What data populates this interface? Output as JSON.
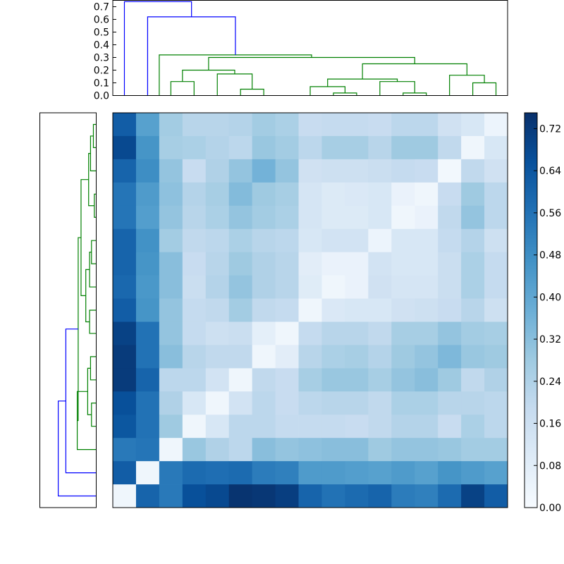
{
  "chart_data": {
    "type": "heatmap",
    "title": "",
    "xlabel": "",
    "ylabel": "",
    "colormap": "Blues",
    "colors": {
      "low": "#f7fbff",
      "high": "#08306b",
      "cluster_link": "#008000",
      "top_link": "#0000ff"
    },
    "colorbar": {
      "range": [
        0.0,
        0.75
      ],
      "tick_values": [
        0.0,
        0.08,
        0.16,
        0.24,
        0.32,
        0.4,
        0.48,
        0.56,
        0.64,
        0.72
      ],
      "tick_labels": [
        "0.00",
        "0.08",
        "0.16",
        "0.24",
        "0.32",
        "0.40",
        "0.48",
        "0.56",
        "0.64",
        "0.72"
      ]
    },
    "matrix": [
      [
        0.62,
        0.42,
        0.27,
        0.22,
        0.22,
        0.23,
        0.27,
        0.25,
        0.18,
        0.19,
        0.19,
        0.18,
        0.21,
        0.21,
        0.15,
        0.12,
        0.04
      ],
      [
        0.68,
        0.46,
        0.26,
        0.25,
        0.23,
        0.21,
        0.29,
        0.27,
        0.21,
        0.26,
        0.26,
        0.22,
        0.28,
        0.28,
        0.2,
        0.03,
        0.12
      ],
      [
        0.6,
        0.48,
        0.3,
        0.18,
        0.24,
        0.3,
        0.36,
        0.3,
        0.15,
        0.16,
        0.16,
        0.17,
        0.19,
        0.18,
        0.02,
        0.2,
        0.15
      ],
      [
        0.55,
        0.44,
        0.31,
        0.23,
        0.26,
        0.33,
        0.28,
        0.26,
        0.13,
        0.1,
        0.11,
        0.12,
        0.05,
        0.03,
        0.18,
        0.28,
        0.21
      ],
      [
        0.55,
        0.43,
        0.3,
        0.22,
        0.25,
        0.3,
        0.27,
        0.25,
        0.13,
        0.1,
        0.1,
        0.12,
        0.03,
        0.05,
        0.2,
        0.3,
        0.21
      ],
      [
        0.6,
        0.47,
        0.27,
        0.2,
        0.21,
        0.25,
        0.22,
        0.21,
        0.12,
        0.14,
        0.14,
        0.04,
        0.12,
        0.12,
        0.19,
        0.23,
        0.16
      ],
      [
        0.6,
        0.46,
        0.32,
        0.18,
        0.22,
        0.28,
        0.24,
        0.22,
        0.08,
        0.05,
        0.05,
        0.14,
        0.12,
        0.12,
        0.17,
        0.25,
        0.19
      ],
      [
        0.59,
        0.45,
        0.32,
        0.17,
        0.23,
        0.3,
        0.24,
        0.22,
        0.09,
        0.03,
        0.05,
        0.15,
        0.13,
        0.13,
        0.17,
        0.25,
        0.19
      ],
      [
        0.62,
        0.46,
        0.3,
        0.19,
        0.2,
        0.27,
        0.2,
        0.19,
        0.03,
        0.11,
        0.12,
        0.12,
        0.15,
        0.16,
        0.18,
        0.22,
        0.16
      ],
      [
        0.7,
        0.56,
        0.3,
        0.19,
        0.16,
        0.17,
        0.07,
        0.03,
        0.19,
        0.22,
        0.22,
        0.2,
        0.26,
        0.26,
        0.3,
        0.27,
        0.26
      ],
      [
        0.72,
        0.56,
        0.32,
        0.22,
        0.2,
        0.2,
        0.03,
        0.08,
        0.22,
        0.25,
        0.26,
        0.23,
        0.28,
        0.3,
        0.34,
        0.29,
        0.28
      ],
      [
        0.72,
        0.6,
        0.21,
        0.21,
        0.14,
        0.03,
        0.2,
        0.18,
        0.26,
        0.29,
        0.29,
        0.26,
        0.3,
        0.32,
        0.28,
        0.2,
        0.24
      ],
      [
        0.66,
        0.56,
        0.24,
        0.12,
        0.03,
        0.14,
        0.21,
        0.18,
        0.21,
        0.22,
        0.22,
        0.2,
        0.25,
        0.25,
        0.22,
        0.22,
        0.21
      ],
      [
        0.64,
        0.56,
        0.28,
        0.03,
        0.12,
        0.21,
        0.21,
        0.19,
        0.19,
        0.19,
        0.18,
        0.2,
        0.23,
        0.23,
        0.18,
        0.25,
        0.21
      ],
      [
        0.54,
        0.55,
        0.03,
        0.29,
        0.24,
        0.21,
        0.32,
        0.3,
        0.31,
        0.32,
        0.32,
        0.28,
        0.3,
        0.3,
        0.29,
        0.27,
        0.27
      ],
      [
        0.62,
        0.03,
        0.54,
        0.58,
        0.57,
        0.58,
        0.53,
        0.52,
        0.44,
        0.44,
        0.43,
        0.42,
        0.44,
        0.42,
        0.46,
        0.44,
        0.42
      ],
      [
        0.03,
        0.6,
        0.54,
        0.66,
        0.68,
        0.74,
        0.73,
        0.71,
        0.6,
        0.56,
        0.58,
        0.6,
        0.53,
        0.52,
        0.58,
        0.7,
        0.62
      ]
    ],
    "top_dendrogram": {
      "y_range": [
        0.0,
        0.75
      ],
      "y_tick_values": [
        0.0,
        0.1,
        0.2,
        0.3,
        0.4,
        0.5,
        0.6,
        0.7
      ],
      "y_tick_labels": [
        "0.0",
        "0.1",
        "0.2",
        "0.3",
        "0.4",
        "0.5",
        "0.6",
        "0.7"
      ],
      "links": [
        {
          "x": [
            2.5,
            2.5,
            3.5,
            3.5
          ],
          "h": [
            0.0,
            0.11,
            0.11,
            0.0
          ],
          "color": "cluster"
        },
        {
          "x": [
            5.5,
            5.5,
            6.5,
            6.5
          ],
          "h": [
            0.0,
            0.05,
            0.05,
            0.0
          ],
          "color": "cluster"
        },
        {
          "x": [
            4.5,
            4.5,
            6.0,
            6.0
          ],
          "h": [
            0.0,
            0.17,
            0.17,
            0.05
          ],
          "color": "cluster"
        },
        {
          "x": [
            3.0,
            3.0,
            5.25,
            5.25
          ],
          "h": [
            0.11,
            0.2,
            0.2,
            0.17
          ],
          "color": "cluster"
        },
        {
          "x": [
            9.5,
            9.5,
            10.5,
            10.5
          ],
          "h": [
            0.0,
            0.02,
            0.02,
            0.0
          ],
          "color": "cluster"
        },
        {
          "x": [
            8.5,
            8.5,
            10.0,
            10.0
          ],
          "h": [
            0.0,
            0.07,
            0.07,
            0.02
          ],
          "color": "cluster"
        },
        {
          "x": [
            12.5,
            12.5,
            13.5,
            13.5
          ],
          "h": [
            0.0,
            0.02,
            0.02,
            0.0
          ],
          "color": "cluster"
        },
        {
          "x": [
            11.5,
            11.5,
            13.0,
            13.0
          ],
          "h": [
            0.0,
            0.11,
            0.11,
            0.02
          ],
          "color": "cluster"
        },
        {
          "x": [
            9.25,
            9.25,
            12.25,
            12.25
          ],
          "h": [
            0.07,
            0.13,
            0.13,
            0.11
          ],
          "color": "cluster"
        },
        {
          "x": [
            15.5,
            15.5,
            16.5,
            16.5
          ],
          "h": [
            0.0,
            0.1,
            0.1,
            0.0
          ],
          "color": "cluster"
        },
        {
          "x": [
            14.5,
            14.5,
            16.0,
            16.0
          ],
          "h": [
            0.0,
            0.16,
            0.16,
            0.1
          ],
          "color": "cluster"
        },
        {
          "x": [
            10.75,
            10.75,
            15.25,
            15.25
          ],
          "h": [
            0.13,
            0.25,
            0.25,
            0.16
          ],
          "color": "cluster"
        },
        {
          "x": [
            4.125,
            4.125,
            13.0,
            13.0
          ],
          "h": [
            0.2,
            0.3,
            0.3,
            0.25
          ],
          "color": "cluster"
        },
        {
          "x": [
            2.0,
            2.0,
            8.56,
            8.56
          ],
          "h": [
            0.0,
            0.32,
            0.32,
            0.3
          ],
          "color": "cluster"
        },
        {
          "x": [
            1.5,
            1.5,
            5.28,
            5.28
          ],
          "h": [
            0.0,
            0.62,
            0.62,
            0.32
          ],
          "color": "top"
        },
        {
          "x": [
            0.5,
            0.5,
            3.39,
            3.39
          ],
          "h": [
            0.0,
            0.74,
            0.74,
            0.62
          ],
          "color": "top"
        }
      ]
    },
    "left_dendrogram": {
      "links": [
        {
          "y": [
            0.5,
            0.5,
            1.5,
            1.5
          ],
          "h": [
            0.0,
            0.03,
            0.03,
            0.0
          ],
          "color": "cluster"
        },
        {
          "y": [
            1.0,
            1.0,
            2.5,
            2.5
          ],
          "h": [
            0.03,
            0.06,
            0.06,
            0.0
          ],
          "color": "cluster"
        },
        {
          "y": [
            3.5,
            3.5,
            4.5,
            4.5
          ],
          "h": [
            0.0,
            0.02,
            0.02,
            0.0
          ],
          "color": "cluster"
        },
        {
          "y": [
            5.5,
            5.5,
            6.5,
            6.5
          ],
          "h": [
            0.0,
            0.05,
            0.05,
            0.0
          ],
          "color": "cluster"
        },
        {
          "y": [
            6.0,
            6.0,
            7.5,
            7.5
          ],
          "h": [
            0.05,
            0.07,
            0.07,
            0.0
          ],
          "color": "cluster"
        },
        {
          "y": [
            8.5,
            8.5,
            9.5,
            9.5
          ],
          "h": [
            0.0,
            0.07,
            0.07,
            0.0
          ],
          "color": "cluster"
        },
        {
          "y": [
            10.5,
            10.5,
            11.5,
            11.5
          ],
          "h": [
            0.0,
            0.06,
            0.06,
            0.0
          ],
          "color": "cluster"
        },
        {
          "y": [
            12.5,
            12.5,
            13.5,
            13.5
          ],
          "h": [
            0.0,
            0.05,
            0.05,
            0.0
          ],
          "color": "cluster"
        },
        {
          "y": [
            11.0,
            11.0,
            13.0,
            13.0
          ],
          "h": [
            0.06,
            0.09,
            0.09,
            0.05
          ],
          "color": "cluster"
        },
        {
          "y": [
            1.75,
            1.75,
            4.0,
            4.0
          ],
          "h": [
            0.06,
            0.08,
            0.08,
            0.02
          ],
          "color": "cluster"
        },
        {
          "y": [
            6.75,
            6.75,
            9.0,
            9.0
          ],
          "h": [
            0.07,
            0.11,
            0.11,
            0.07
          ],
          "color": "cluster"
        },
        {
          "y": [
            2.875,
            2.875,
            7.875,
            7.875
          ],
          "h": [
            0.08,
            0.16,
            0.16,
            0.11
          ],
          "color": "cluster"
        },
        {
          "y": [
            12.0,
            12.0,
            14.5,
            14.5
          ],
          "h": [
            0.09,
            0.2,
            0.2,
            0.0
          ],
          "color": "cluster"
        },
        {
          "y": [
            5.375,
            5.375,
            13.25,
            13.25
          ],
          "h": [
            0.16,
            0.19,
            0.19,
            0.2
          ],
          "color": "cluster"
        },
        {
          "y": [
            9.31,
            9.31,
            15.5,
            15.5
          ],
          "h": [
            0.19,
            0.32,
            0.32,
            0.0
          ],
          "color": "top"
        },
        {
          "y": [
            12.41,
            12.41,
            16.5,
            16.5
          ],
          "h": [
            0.32,
            0.4,
            0.4,
            0.0
          ],
          "color": "top"
        }
      ]
    }
  }
}
